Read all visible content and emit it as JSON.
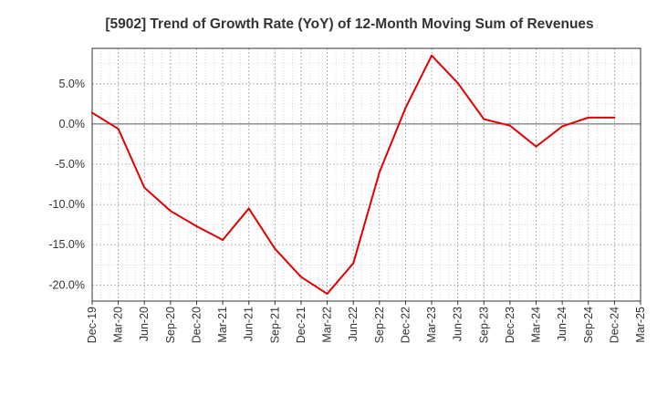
{
  "chart_data": {
    "type": "line",
    "title": "[5902]  Trend of Growth Rate (YoY) of 12-Month Moving Sum of Revenues",
    "xlabel": "",
    "ylabel": "",
    "x": [
      "Dec-19",
      "Mar-20",
      "Jun-20",
      "Sep-20",
      "Dec-20",
      "Mar-21",
      "Jun-21",
      "Sep-21",
      "Dec-21",
      "Mar-22",
      "Jun-22",
      "Sep-22",
      "Dec-22",
      "Mar-23",
      "Jun-23",
      "Sep-23",
      "Dec-23",
      "Mar-24",
      "Jun-24",
      "Sep-24",
      "Dec-24"
    ],
    "x_ticks": [
      "Dec-19",
      "Mar-20",
      "Jun-20",
      "Sep-20",
      "Dec-20",
      "Mar-21",
      "Jun-21",
      "Sep-21",
      "Dec-21",
      "Mar-22",
      "Jun-22",
      "Sep-22",
      "Dec-22",
      "Mar-23",
      "Jun-23",
      "Sep-23",
      "Dec-23",
      "Mar-24",
      "Jun-24",
      "Sep-24",
      "Dec-24",
      "Mar-25"
    ],
    "series": [
      {
        "values": [
          1.4,
          -0.6,
          -7.9,
          -10.8,
          -12.7,
          -14.4,
          -10.5,
          -15.5,
          -19.0,
          -21.1,
          -17.3,
          -6.0,
          2.0,
          8.5,
          5.1,
          0.6,
          -0.2,
          -2.8,
          -0.3,
          0.8,
          0.8
        ],
        "color": "#e00000"
      }
    ],
    "y_ticks": [
      5.0,
      0.0,
      -5.0,
      -10.0,
      -15.0,
      -20.0
    ],
    "y_tick_labels": [
      "5.0%",
      "0.0%",
      "-5.0%",
      "-10.0%",
      "-15.0%",
      "-20.0%"
    ],
    "ylim": [
      -22.0,
      9.4
    ],
    "grid": true,
    "legend": "none"
  }
}
